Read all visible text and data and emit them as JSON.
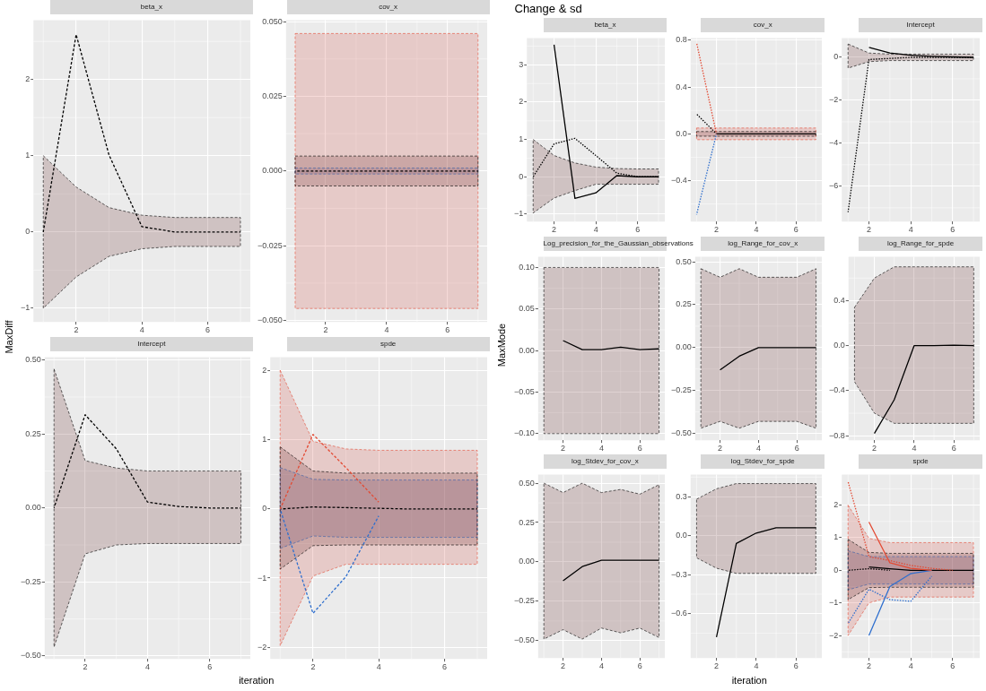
{
  "chart_data": [
    {
      "type": "line",
      "title": "beta_x",
      "ylabel": "MaxDiff",
      "grid": true,
      "x": [
        1,
        2,
        3,
        4,
        5,
        6,
        7
      ],
      "xlim": [
        0.7,
        7.3
      ],
      "xticks": [
        2,
        4,
        6
      ],
      "ylim": [
        -1.18,
        2.78
      ],
      "yticks": [
        {
          "value": -1,
          "label": "−1"
        },
        0,
        1,
        2
      ],
      "series": [
        {
          "color": "#000000",
          "line_style": "dashed",
          "values": [
            0,
            2.59,
            1.01,
            0.07,
            0,
            0,
            0
          ],
          "upper": [
            1,
            0.59,
            0.32,
            0.22,
            0.19,
            0.19,
            0.19
          ],
          "lower": [
            -1,
            -0.59,
            -0.32,
            -0.22,
            -0.19,
            -0.19,
            -0.19
          ]
        }
      ]
    },
    {
      "type": "line",
      "title": "cov_x",
      "grid": true,
      "x": [
        1,
        2,
        3,
        4,
        5,
        6,
        7
      ],
      "xlim": [
        0.7,
        7.3
      ],
      "xticks": [
        2,
        4,
        6
      ],
      "ylim": [
        -0.0505,
        0.0505
      ],
      "yticks": [
        {
          "value": -0.05,
          "label": "−0.050"
        },
        {
          "value": -0.025,
          "label": "−0.025"
        },
        {
          "value": 0,
          "label": "0.000"
        },
        {
          "value": 0.025,
          "label": "0.025"
        },
        {
          "value": 0.05,
          "label": "0.050"
        }
      ],
      "series": [
        {
          "color": "#e34a33",
          "line_style": "dashed",
          "values": [
            null,
            null,
            null,
            null,
            null,
            null,
            null
          ],
          "upper": [
            0.046,
            0.046,
            0.046,
            0.046,
            0.046,
            0.046,
            0.046
          ],
          "lower": [
            -0.046,
            -0.046,
            -0.046,
            -0.046,
            -0.046,
            -0.046,
            -0.046
          ]
        },
        {
          "color": "#2f6fce",
          "line_style": "dashed",
          "values": [
            null,
            null,
            null,
            null,
            null,
            null,
            null
          ],
          "upper": [
            0.001,
            0.001,
            0.001,
            0.001,
            0.001,
            0.001,
            0.001
          ],
          "lower": [
            -0.001,
            -0.001,
            -0.001,
            -0.001,
            -0.001,
            -0.001,
            -0.001
          ]
        },
        {
          "color": "#000000",
          "line_style": "dashed",
          "values": [
            0,
            0,
            0,
            0,
            0,
            0,
            0
          ],
          "upper": [
            0.005,
            0.005,
            0.005,
            0.005,
            0.005,
            0.005,
            0.005
          ],
          "lower": [
            -0.005,
            -0.005,
            -0.005,
            -0.005,
            -0.005,
            -0.005,
            -0.005
          ]
        }
      ]
    },
    {
      "type": "line",
      "title": "Intercept",
      "grid": true,
      "x": [
        1,
        2,
        3,
        4,
        5,
        6,
        7
      ],
      "xlim": [
        0.7,
        7.3
      ],
      "xticks": [
        2,
        4,
        6
      ],
      "ylim": [
        -0.51,
        0.51
      ],
      "yticks": [
        {
          "value": -0.5,
          "label": "−0.50"
        },
        {
          "value": -0.25,
          "label": "−0.25"
        },
        {
          "value": 0,
          "label": "0.00"
        },
        {
          "value": 0.25,
          "label": "0.25"
        },
        {
          "value": 0.5,
          "label": "0.50"
        }
      ],
      "series": [
        {
          "color": "#000000",
          "line_style": "dashed",
          "values": [
            0,
            0.315,
            0.2,
            0.02,
            0.005,
            0,
            0
          ],
          "upper": [
            0.47,
            0.16,
            0.135,
            0.125,
            0.125,
            0.125,
            0.125
          ],
          "lower": [
            -0.47,
            -0.155,
            -0.125,
            -0.12,
            -0.12,
            -0.12,
            -0.12
          ]
        }
      ]
    },
    {
      "type": "line",
      "title": "spde",
      "xlabel": "iteration",
      "grid": true,
      "x": [
        1,
        2,
        3,
        4,
        5,
        6,
        7
      ],
      "xlim": [
        0.7,
        7.3
      ],
      "xticks": [
        2,
        4,
        6
      ],
      "ylim": [
        -2.17,
        2.2
      ],
      "yticks": [
        {
          "value": -2,
          "label": "−2"
        },
        {
          "value": -1,
          "label": "−1"
        },
        0,
        1,
        2
      ],
      "series": [
        {
          "color": "#e34a33",
          "line_style": "dashed",
          "values": [
            0,
            1.08,
            0.6,
            0.1,
            null,
            null,
            null
          ],
          "upper": [
            2.01,
            0.98,
            0.87,
            0.85,
            0.85,
            0.85,
            0.85
          ],
          "lower": [
            -1.98,
            -0.97,
            -0.8,
            -0.8,
            -0.8,
            -0.8,
            -0.8
          ]
        },
        {
          "color": "#2f6fce",
          "line_style": "dashed",
          "values": [
            0,
            -1.51,
            -0.98,
            -0.1,
            null,
            null,
            null
          ],
          "upper": [
            0.6,
            0.43,
            0.42,
            0.42,
            0.42,
            0.42,
            0.42
          ],
          "lower": [
            -0.57,
            -0.39,
            -0.41,
            -0.41,
            -0.41,
            -0.41,
            -0.41
          ]
        },
        {
          "color": "#000000",
          "line_style": "dashed",
          "values": [
            0,
            0.03,
            0.02,
            0.01,
            0,
            0,
            0
          ],
          "upper": [
            0.9,
            0.55,
            0.52,
            0.52,
            0.52,
            0.52,
            0.52
          ],
          "lower": [
            -0.87,
            -0.53,
            -0.52,
            -0.52,
            -0.52,
            -0.52,
            -0.52
          ]
        }
      ]
    },
    {
      "type": "line",
      "title": "beta_x",
      "annotations": [
        "Change & sd"
      ],
      "grid": true,
      "x": [
        1,
        2,
        3,
        4,
        5,
        6,
        7
      ],
      "xlim": [
        0.7,
        7.3
      ],
      "xticks": [
        2,
        4,
        6
      ],
      "ylim": [
        -1.2,
        3.72
      ],
      "yticks": [
        {
          "value": -1,
          "label": "−1"
        },
        0,
        1,
        2,
        3
      ],
      "series": [
        {
          "color": "#000000",
          "line_style": "solid",
          "values": [
            null,
            3.54,
            -0.58,
            -0.43,
            0.03,
            0,
            0
          ],
          "upper": [
            1,
            0.57,
            0.37,
            0.26,
            0.22,
            0.21,
            0.21
          ],
          "lower": [
            -0.97,
            -0.57,
            -0.37,
            -0.2,
            -0.2,
            -0.2,
            -0.2
          ]
        },
        {
          "color": "#000000",
          "line_style": "dotted",
          "values": [
            0,
            0.88,
            1.03,
            0.57,
            0.1,
            0,
            0
          ]
        }
      ]
    },
    {
      "type": "line",
      "title": "cov_x",
      "grid": true,
      "x": [
        1,
        2,
        3,
        4,
        5,
        6,
        7
      ],
      "xlim": [
        0.7,
        7.3
      ],
      "xticks": [
        2,
        4,
        6
      ],
      "ylim": [
        -0.75,
        0.82
      ],
      "yticks": [
        {
          "value": -0.4,
          "label": "−0.4"
        },
        {
          "value": 0,
          "label": "0.0"
        },
        0.4,
        0.8
      ],
      "series": [
        {
          "color": "#e34a33",
          "line_style": "dotted",
          "values": [
            0.78,
            0,
            null,
            null,
            null,
            null,
            null
          ],
          "upper": [
            0.05,
            0.05,
            0.05,
            0.05,
            0.05,
            0.05,
            0.05
          ],
          "lower": [
            -0.05,
            -0.05,
            -0.05,
            -0.05,
            -0.05,
            -0.05,
            -0.05
          ]
        },
        {
          "color": "#2f6fce",
          "line_style": "dotted",
          "values": [
            -0.69,
            0,
            null,
            null,
            null,
            null,
            null
          ]
        },
        {
          "color": "#000000",
          "line_style": "dotted",
          "values": [
            0.17,
            0,
            null,
            null,
            null,
            null,
            null
          ]
        },
        {
          "color": "#000000",
          "line_style": "solid",
          "values": [
            null,
            0,
            0,
            0,
            0,
            0,
            0
          ],
          "upper": [
            0.02,
            0.02,
            0.02,
            0.02,
            0.02,
            0.02,
            0.02
          ],
          "lower": [
            -0.02,
            -0.02,
            -0.02,
            -0.02,
            -0.02,
            -0.02,
            -0.02
          ]
        }
      ]
    },
    {
      "type": "line",
      "title": "Intercept",
      "grid": true,
      "x": [
        1,
        2,
        3,
        4,
        5,
        6,
        7
      ],
      "xlim": [
        0.7,
        7.3
      ],
      "xticks": [
        2,
        4,
        6
      ],
      "ylim": [
        -7.64,
        0.9
      ],
      "yticks": [
        {
          "value": -6,
          "label": "−6"
        },
        {
          "value": -4,
          "label": "−4"
        },
        {
          "value": -2,
          "label": "−2"
        },
        0
      ],
      "series": [
        {
          "color": "#000000",
          "line_style": "solid",
          "values": [
            null,
            0.46,
            0.2,
            0.1,
            0.05,
            0.02,
            0
          ],
          "upper": [
            0.62,
            0.2,
            0.15,
            0.15,
            0.15,
            0.15,
            0.15
          ],
          "lower": [
            -0.5,
            -0.2,
            -0.15,
            -0.15,
            -0.15,
            -0.15,
            -0.15
          ]
        },
        {
          "color": "#000000",
          "line_style": "dotted",
          "values": [
            -7.2,
            -0.1,
            -0.05,
            0,
            0,
            0,
            0
          ]
        }
      ]
    },
    {
      "type": "line",
      "title": "Log_precision_for_the_Gaussian_observations",
      "ylabel": "MaxMode",
      "grid": true,
      "x": [
        1,
        2,
        3,
        4,
        5,
        6,
        7
      ],
      "xlim": [
        0.7,
        7.3
      ],
      "xticks": [
        2,
        4,
        6
      ],
      "ylim": [
        -0.108,
        0.113
      ],
      "yticks": [
        {
          "value": -0.1,
          "label": "−0.10"
        },
        {
          "value": -0.05,
          "label": "−0.05"
        },
        {
          "value": 0,
          "label": "0.00"
        },
        {
          "value": 0.05,
          "label": "0.05"
        },
        {
          "value": 0.1,
          "label": "0.10"
        }
      ],
      "series": [
        {
          "color": "#000000",
          "line_style": "solid",
          "values": [
            null,
            0.012,
            0.001,
            0.001,
            0.004,
            0.001,
            0.002
          ],
          "upper": [
            0.1,
            0.1,
            0.1,
            0.1,
            0.1,
            0.1,
            0.1
          ],
          "lower": [
            -0.1,
            -0.1,
            -0.1,
            -0.1,
            -0.1,
            -0.1,
            -0.1
          ]
        }
      ]
    },
    {
      "type": "line",
      "title": "log_Range_for_cov_x",
      "grid": true,
      "x": [
        1,
        2,
        3,
        4,
        5,
        6,
        7
      ],
      "xlim": [
        0.7,
        7.3
      ],
      "xticks": [
        2,
        4,
        6
      ],
      "ylim": [
        -0.54,
        0.53
      ],
      "yticks": [
        {
          "value": -0.5,
          "label": "−0.50"
        },
        {
          "value": -0.25,
          "label": "−0.25"
        },
        {
          "value": 0,
          "label": "0.00"
        },
        {
          "value": 0.25,
          "label": "0.25"
        },
        {
          "value": 0.5,
          "label": "0.50"
        }
      ],
      "series": [
        {
          "color": "#000000",
          "line_style": "solid",
          "values": [
            null,
            -0.13,
            -0.05,
            0,
            0,
            0,
            0
          ],
          "upper": [
            0.46,
            0.41,
            0.46,
            0.41,
            0.41,
            0.41,
            0.46
          ],
          "lower": [
            -0.47,
            -0.43,
            -0.47,
            -0.43,
            -0.43,
            -0.43,
            -0.47
          ]
        }
      ]
    },
    {
      "type": "line",
      "title": "log_Range_for_spde",
      "grid": true,
      "x": [
        1,
        2,
        3,
        4,
        5,
        6,
        7
      ],
      "xlim": [
        0.7,
        7.3
      ],
      "xticks": [
        2,
        4,
        6
      ],
      "ylim": [
        -0.84,
        0.79
      ],
      "yticks": [
        {
          "value": -0.8,
          "label": "−0.8"
        },
        {
          "value": -0.4,
          "label": "−0.4"
        },
        {
          "value": 0,
          "label": "0.0"
        },
        0.4
      ],
      "series": [
        {
          "color": "#000000",
          "line_style": "solid",
          "values": [
            null,
            -0.78,
            -0.48,
            0,
            0,
            0.005,
            0
          ],
          "upper": [
            0.34,
            0.6,
            0.7,
            0.7,
            0.7,
            0.7,
            0.7
          ],
          "lower": [
            -0.32,
            -0.6,
            -0.69,
            -0.69,
            -0.69,
            -0.69,
            -0.69
          ]
        }
      ]
    },
    {
      "type": "line",
      "title": "log_Stdev_for_cov_x",
      "grid": true,
      "x": [
        1,
        2,
        3,
        4,
        5,
        6,
        7
      ],
      "xlim": [
        0.7,
        7.3
      ],
      "xticks": [
        2,
        4,
        6
      ],
      "ylim": [
        -0.61,
        0.555
      ],
      "yticks": [
        {
          "value": -0.5,
          "label": "−0.50"
        },
        {
          "value": -0.25,
          "label": "−0.25"
        },
        {
          "value": 0,
          "label": "0.00"
        },
        {
          "value": 0.25,
          "label": "0.25"
        },
        {
          "value": 0.5,
          "label": "0.50"
        }
      ],
      "series": [
        {
          "color": "#000000",
          "line_style": "solid",
          "values": [
            null,
            -0.12,
            -0.03,
            0.01,
            0.01,
            0.01,
            0.01
          ],
          "upper": [
            0.5,
            0.44,
            0.5,
            0.44,
            0.46,
            0.43,
            0.49
          ],
          "lower": [
            -0.49,
            -0.43,
            -0.49,
            -0.42,
            -0.45,
            -0.42,
            -0.48
          ]
        }
      ]
    },
    {
      "type": "line",
      "title": "log_Stdev_for_spde",
      "xlabel": "iteration",
      "grid": true,
      "x": [
        1,
        2,
        3,
        4,
        5,
        6,
        7
      ],
      "xlim": [
        0.7,
        7.3
      ],
      "xticks": [
        2,
        4,
        6
      ],
      "ylim": [
        -0.94,
        0.47
      ],
      "yticks": [
        {
          "value": -0.6,
          "label": "−0.6"
        },
        {
          "value": -0.3,
          "label": "−0.3"
        },
        {
          "value": 0,
          "label": "0.0"
        },
        0.3
      ],
      "series": [
        {
          "color": "#000000",
          "line_style": "solid",
          "values": [
            null,
            -0.78,
            -0.06,
            0.02,
            0.06,
            0.06,
            0.06
          ],
          "upper": [
            0.28,
            0.36,
            0.4,
            0.4,
            0.4,
            0.4,
            0.4
          ],
          "lower": [
            -0.17,
            -0.25,
            -0.29,
            -0.29,
            -0.29,
            -0.29,
            -0.29
          ]
        }
      ]
    },
    {
      "type": "line",
      "title": "spde",
      "grid": true,
      "x": [
        1,
        2,
        3,
        4,
        5,
        6,
        7
      ],
      "xlim": [
        0.7,
        7.3
      ],
      "xticks": [
        2,
        4,
        6
      ],
      "ylim": [
        -2.69,
        2.94
      ],
      "yticks": [
        {
          "value": -2,
          "label": "−2"
        },
        {
          "value": -1,
          "label": "−1"
        },
        0,
        1,
        2
      ],
      "series": [
        {
          "color": "#e34a33",
          "line_style": "solid",
          "values": [
            null,
            1.48,
            0.23,
            0.06,
            0,
            null,
            null
          ],
          "upper": [
            2,
            0.98,
            0.85,
            0.85,
            0.85,
            0.85,
            0.85
          ],
          "lower": [
            -2,
            -1,
            -0.82,
            -0.82,
            -0.82,
            -0.82,
            -0.82
          ]
        },
        {
          "color": "#e34a33",
          "line_style": "dotted",
          "values": [
            2.72,
            0.42,
            0.3,
            0.15,
            0.06,
            0,
            null
          ]
        },
        {
          "color": "#2f6fce",
          "line_style": "solid",
          "values": [
            null,
            -2,
            -0.5,
            -0.1,
            0,
            null,
            null
          ],
          "upper": [
            0.6,
            0.42,
            0.42,
            0.42,
            0.42,
            0.42,
            0.42
          ],
          "lower": [
            -0.6,
            -0.42,
            -0.42,
            -0.42,
            -0.42,
            -0.42,
            -0.42
          ]
        },
        {
          "color": "#2f6fce",
          "line_style": "dotted",
          "values": [
            -1.63,
            -0.58,
            -0.9,
            -0.95,
            -0.18,
            null,
            null
          ]
        },
        {
          "color": "#000000",
          "line_style": "solid",
          "values": [
            null,
            0.1,
            0.05,
            0,
            0,
            0,
            0
          ],
          "upper": [
            0.95,
            0.55,
            0.52,
            0.52,
            0.52,
            0.52,
            0.52
          ],
          "lower": [
            -0.9,
            -0.53,
            -0.52,
            -0.52,
            -0.52,
            -0.52,
            -0.52
          ]
        },
        {
          "color": "#000000",
          "line_style": "dotted",
          "values": [
            0,
            0.05,
            0,
            null,
            null,
            null,
            null
          ]
        }
      ]
    }
  ]
}
